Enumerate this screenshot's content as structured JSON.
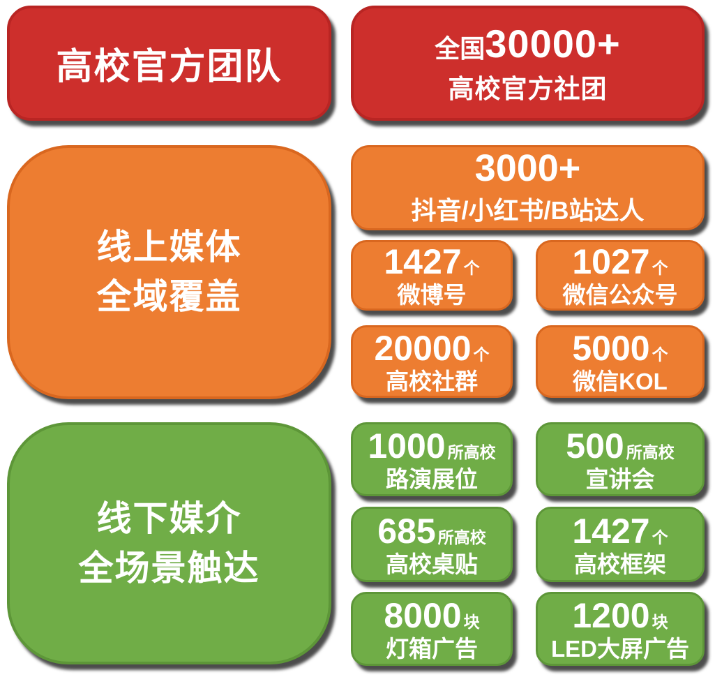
{
  "colors": {
    "red": "#cd2f2c",
    "red_border": "#b92523",
    "orange": "#ed7d31",
    "orange_border": "#d9671f",
    "green": "#70ad47",
    "green_border": "#5d9638",
    "text": "#ffffff"
  },
  "red_section": {
    "left": {
      "title": "高校官方团队"
    },
    "right": {
      "prefix": "全国",
      "number": "30000+",
      "label": "高校官方社团"
    }
  },
  "orange_section": {
    "left": {
      "line1": "线上媒体",
      "line2": "全域覆盖"
    },
    "hero": {
      "number": "3000+",
      "label": "抖音/小红书/B站达人"
    },
    "cells": [
      {
        "number": "1427",
        "unit": "个",
        "label": "微博号"
      },
      {
        "number": "1027",
        "unit": "个",
        "label": "微信公众号"
      },
      {
        "number": "20000",
        "unit": "个",
        "label": "高校社群"
      },
      {
        "number": "5000",
        "unit": "个",
        "label": "微信KOL"
      }
    ]
  },
  "green_section": {
    "left": {
      "line1": "线下媒介",
      "line2": "全场景触达"
    },
    "cells": [
      {
        "number": "1000",
        "unit": "所高校",
        "label": "路演展位"
      },
      {
        "number": "500",
        "unit": "所高校",
        "label": "宣讲会"
      },
      {
        "number": "685",
        "unit": "所高校",
        "label": "高校桌贴"
      },
      {
        "number": "1427",
        "unit": "个",
        "label": "高校框架"
      },
      {
        "number": "8000",
        "unit": "块",
        "label": "灯箱广告"
      },
      {
        "number": "1200",
        "unit": "块",
        "label": "LED大屏广告"
      }
    ]
  }
}
